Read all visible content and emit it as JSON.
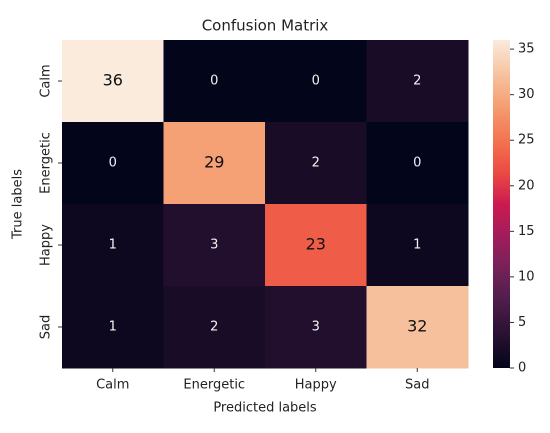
{
  "chart_data": {
    "type": "heatmap",
    "title": "Confusion Matrix",
    "xlabel": "Predicted labels",
    "ylabel": "True labels",
    "x_categories": [
      "Calm",
      "Energetic",
      "Happy",
      "Sad"
    ],
    "y_categories": [
      "Calm",
      "Energetic",
      "Happy",
      "Sad"
    ],
    "values": [
      [
        36,
        0,
        0,
        2
      ],
      [
        0,
        29,
        2,
        0
      ],
      [
        1,
        3,
        23,
        1
      ],
      [
        1,
        2,
        3,
        32
      ]
    ],
    "colormap": "rocket",
    "clim": [
      0,
      36
    ],
    "cticks": [
      0,
      5,
      10,
      15,
      20,
      25,
      30,
      35
    ]
  }
}
